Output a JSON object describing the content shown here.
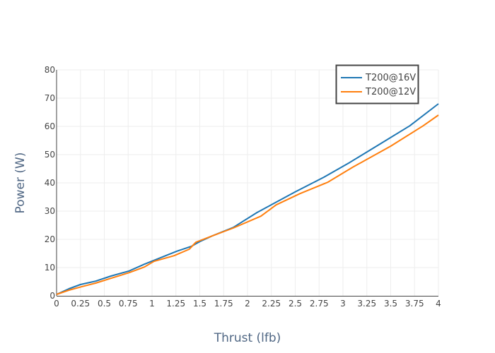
{
  "chart_data": {
    "type": "line",
    "title": "",
    "xlabel": "Thrust (lfb)",
    "ylabel": "Power (W)",
    "xlim": [
      0,
      4
    ],
    "ylim": [
      0,
      80
    ],
    "grid": true,
    "legend_position": "top-right",
    "x_ticks": [
      "0",
      "0.25",
      "0.5",
      "0.75",
      "1",
      "1.25",
      "1.5",
      "1.75",
      "2",
      "2.25",
      "2.5",
      "2.75",
      "3",
      "3.25",
      "3.5",
      "3.75",
      "4"
    ],
    "y_ticks": [
      "0",
      "10",
      "20",
      "30",
      "40",
      "50",
      "60",
      "70",
      "80"
    ],
    "series": [
      {
        "name": "T200@16V",
        "color": "#1f77b4",
        "x": [
          0,
          0.13,
          0.25,
          0.41,
          0.57,
          0.76,
          0.92,
          1.26,
          1.41,
          1.5,
          1.63,
          1.85,
          2.1,
          2.5,
          2.8,
          3.07,
          3.4,
          3.7,
          4.0
        ],
        "y": [
          0.5,
          2.5,
          4,
          5.2,
          7,
          8.8,
          11.2,
          15.8,
          17.5,
          19.2,
          21.2,
          24.2,
          29.5,
          36.8,
          42,
          47.2,
          54,
          60.2,
          68
        ]
      },
      {
        "name": "T200@12V",
        "color": "#ff7f0e",
        "x": [
          0,
          0.13,
          0.26,
          0.41,
          0.57,
          0.76,
          0.92,
          1.02,
          1.23,
          1.39,
          1.46,
          1.63,
          1.85,
          2.14,
          2.3,
          2.55,
          2.84,
          3.1,
          3.5,
          3.84,
          4.0
        ],
        "y": [
          0.5,
          2,
          3.2,
          4.5,
          6.2,
          8.2,
          10.2,
          12.2,
          14.2,
          16.5,
          19,
          21.2,
          24,
          28.2,
          32.2,
          36.2,
          40.2,
          45.5,
          53,
          60.2,
          64
        ]
      }
    ]
  }
}
